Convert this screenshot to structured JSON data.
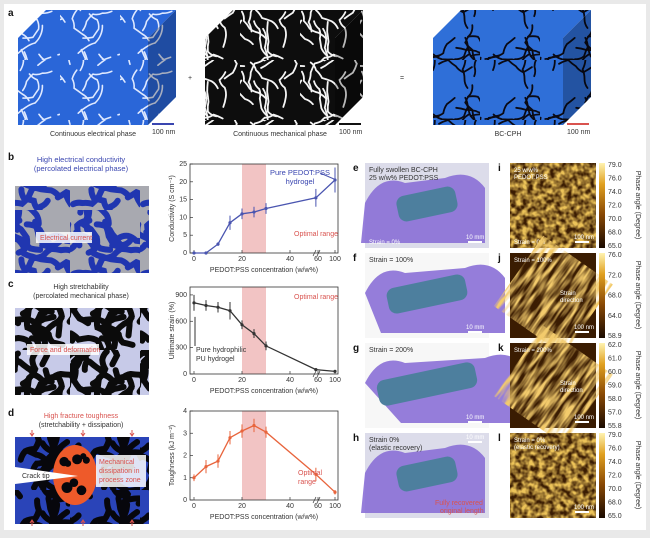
{
  "panel_a": {
    "label": "a",
    "plus": "+",
    "equals": "=",
    "cubes": [
      {
        "caption": "Continuous electrical phase",
        "scale": "100 nm",
        "caption_color": "#3a46b0",
        "bar_color": "#3a46b0"
      },
      {
        "caption": "Continuous mechanical phase",
        "scale": "100 nm",
        "caption_color": "#333333",
        "bar_color": "#111111"
      },
      {
        "caption": "BC-CPH",
        "scale": "100 nm",
        "caption_color": "#d9534f",
        "bar_color": "#d9534f"
      }
    ]
  },
  "panel_b": {
    "label": "b",
    "title1": "High electrical conductivity",
    "title2": "(percolated electrical phase)",
    "annotation": "Electrical current"
  },
  "panel_c": {
    "label": "c",
    "title1": "High stretchability",
    "title2": "(percolated mechanical phase)",
    "annotation": "Force and deformation"
  },
  "panel_d": {
    "label": "d",
    "title1": "High fracture toughness",
    "title2": "(stretchability + dissipation)",
    "annotation1": "Mechanical",
    "annotation2": "dissipation in",
    "annotation3": "process zone",
    "crack": "Crack tip"
  },
  "chart_data": [
    {
      "type": "line",
      "xlabel": "PEDOT:PSS concentration (w/w%)",
      "ylabel": "Conductivity (S cm⁻¹)",
      "x": [
        0,
        5,
        10,
        15,
        20,
        25,
        30,
        55,
        100
      ],
      "values": [
        0,
        0,
        2.5,
        8.5,
        11,
        11.5,
        12.5,
        15.5,
        20.5
      ],
      "errors": [
        0,
        0,
        0.5,
        2,
        1.5,
        1.5,
        1.5,
        2.5,
        3.5
      ],
      "ylim": [
        0,
        25
      ],
      "yticks": [
        "0",
        "5",
        "10",
        "15",
        "20",
        "25"
      ],
      "xticks": [
        "0",
        "20",
        "40",
        "60",
        "100"
      ],
      "broken_x_axis": true,
      "shaded_range": [
        20,
        30
      ],
      "shaded_label": "Optimal range",
      "annotation1": "Pure PEDOT:PSS",
      "annotation2": "hydrogel",
      "color": "#4a55b0"
    },
    {
      "type": "line",
      "xlabel": "PEDOT:PSS concentration (w/w%)",
      "ylabel": "Ultimate strain (%)",
      "x": [
        0,
        5,
        10,
        15,
        20,
        25,
        30,
        55,
        100
      ],
      "values": [
        810,
        780,
        760,
        720,
        560,
        460,
        320,
        50,
        30
      ],
      "errors": [
        90,
        60,
        60,
        100,
        50,
        50,
        50,
        10,
        10
      ],
      "ylim": [
        0,
        990
      ],
      "yticks": [
        "0",
        "300",
        "600",
        "900"
      ],
      "xticks": [
        "0",
        "20",
        "40",
        "60",
        "100"
      ],
      "broken_x_axis": true,
      "shaded_range": [
        20,
        30
      ],
      "shaded_label": "Optimal range",
      "annotation1": "Pure hydrophilic",
      "annotation2": "PU hydrogel",
      "color": "#333333"
    },
    {
      "type": "line",
      "xlabel": "PEDOT:PSS concentration (w/w%)",
      "ylabel": "Toughness (kJ m⁻²)",
      "x": [
        0,
        5,
        10,
        15,
        20,
        25,
        30,
        55,
        100
      ],
      "values": [
        1.0,
        1.5,
        1.75,
        2.8,
        3.1,
        3.35,
        3.05,
        1.15,
        0.35
      ],
      "errors": [
        0.15,
        0.3,
        0.3,
        0.3,
        0.3,
        0.3,
        0.25,
        0.3,
        0.1
      ],
      "ylim": [
        0,
        4
      ],
      "yticks": [
        "0",
        "1",
        "2",
        "3",
        "4"
      ],
      "xticks": [
        "0",
        "20",
        "40",
        "60",
        "100"
      ],
      "broken_x_axis": true,
      "shaded_range": [
        20,
        30
      ],
      "shaded_label": "Optimal",
      "shaded_label2": "range",
      "color": "#e8643c"
    }
  ],
  "photos": [
    {
      "label": "e",
      "text1": "Fully swollen BC-CPH",
      "text2": "25 w/w% PEDOT:PSS",
      "bottom": "Strain = 0%",
      "scale": "10 mm"
    },
    {
      "label": "f",
      "text1": "Strain = 100%",
      "scale": "10 mm"
    },
    {
      "label": "g",
      "text1": "Strain = 200%",
      "scale": "10 mm"
    },
    {
      "label": "h",
      "text1": "Strain 0%",
      "text2": "(elastic recovery)",
      "scale": "10 mm",
      "note1": "Fully recovered",
      "note2": "original length"
    }
  ],
  "afm": [
    {
      "label": "i",
      "text1": "25 w/w%",
      "text2": "PEDOT:PSS",
      "bottom": "Strain = 0%",
      "scale": "100 nm",
      "colorbar_title": "Phase angle (Degree)",
      "ticks": [
        "79.0",
        "76.0",
        "74.0",
        "72.0",
        "70.0",
        "68.0",
        "65.0"
      ]
    },
    {
      "label": "j",
      "text1": "Strain = 100%",
      "mid1": "Strain",
      "mid2": "direction",
      "scale": "100 nm",
      "colorbar_title": "Phase angle (Degree)",
      "ticks": [
        "76.0",
        "72.0",
        "68.0",
        "64.0",
        "58.9"
      ]
    },
    {
      "label": "k",
      "text1": "Strain = 200%",
      "mid1": "Strain",
      "mid2": "direction",
      "scale": "100 nm",
      "colorbar_title": "Phase angle (Degree)",
      "ticks": [
        "62.0",
        "61.0",
        "60.0",
        "59.0",
        "58.0",
        "57.0",
        "55.8"
      ]
    },
    {
      "label": "l",
      "text1": "Strain = 0%",
      "text2": "(elastic recovery)",
      "scale": "100 nm",
      "colorbar_title": "Phase angle (Degree)",
      "ticks": [
        "79.0",
        "76.0",
        "74.0",
        "72.0",
        "70.0",
        "68.0",
        "65.0"
      ]
    }
  ]
}
